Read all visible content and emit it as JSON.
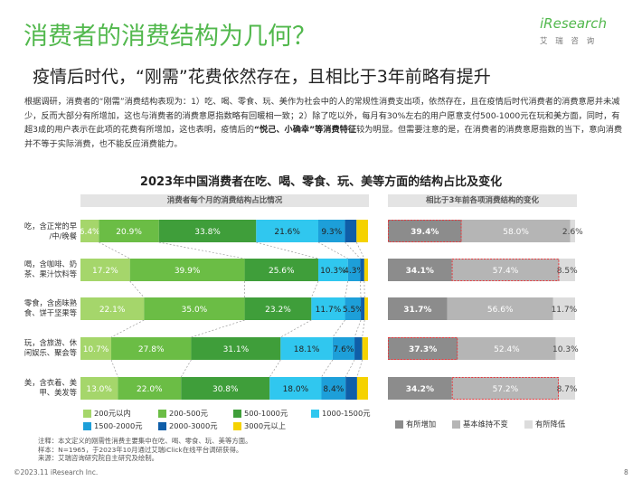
{
  "header": {
    "title": "消费者的消费结构为几何？",
    "subtitle": "疫情后时代，“刚需”花费依然存在，且相比于3年前略有提升",
    "logo_main": "iResearch",
    "logo_sub": "艾 瑞 咨 询"
  },
  "body": {
    "p1": "根据调研，消费者的“刚需”消费结构表现为：1）吃、喝、零食、玩、美作为社会中的人的常规性消费支出项，依然存在，且在疫情后时代消费者的消费意愿并未减少，反而大部分有所增加，这也与消费者的消费意愿指数略有回暖相一致；2）除了吃以外，每月有30%左右的用户愿意支付500-1000元在玩和美方面，同时，有超3成的用户表示在此项的花费有所增加，这也表明，疫情后的",
    "bold": "“悦己、小确幸”等消费特征",
    "p2": "较为明显。但需要注意的是，在消费者的消费意愿指数的当下，意向消费并不等于实际消费，也不能反应消费能力。"
  },
  "chart_data": [
    {
      "type": "bar",
      "stacked": true,
      "orientation": "horizontal",
      "title": "2023年中国消费者在吃、喝、零食、玩、美等方面的结构占比及变化",
      "panel_title": "消费者每个月的消费结构占比情况",
      "categories": [
        "吃，含正常的早/中/晚餐",
        "喝，含咖啡、奶茶、果汁饮料等",
        "零食，含卤味熟食、饼干坚果等",
        "玩，含旅游、休闲娱乐、聚会等",
        "美，含衣着、美甲、美发等"
      ],
      "series": [
        {
          "name": "200元以内",
          "color": "#a5d66b",
          "values": [
            6.4,
            17.2,
            22.1,
            10.7,
            13.0
          ],
          "labels": [
            "6.4%",
            "17.2%",
            "22.1%",
            "10.7%",
            "13.0%"
          ]
        },
        {
          "name": "200-500元",
          "color": "#6bbd45",
          "values": [
            20.9,
            39.9,
            35.0,
            27.8,
            22.0
          ],
          "labels": [
            "20.9%",
            "39.9%",
            "35.0%",
            "27.8%",
            "22.0%"
          ]
        },
        {
          "name": "500-1000元",
          "color": "#3f9e3a",
          "values": [
            33.8,
            25.6,
            23.2,
            31.1,
            30.8
          ],
          "labels": [
            "33.8%",
            "25.6%",
            "23.2%",
            "31.1%",
            "30.8%"
          ]
        },
        {
          "name": "1000-1500元",
          "color": "#30c7ef",
          "values": [
            21.6,
            10.3,
            11.7,
            18.1,
            18.0
          ],
          "labels": [
            "21.6%",
            "10.3%",
            "11.7%",
            "18.1%",
            "18.0%"
          ]
        },
        {
          "name": "1500-2000元",
          "color": "#1d9fd9",
          "values": [
            9.3,
            4.3,
            5.5,
            7.6,
            8.4
          ],
          "labels": [
            "9.3%",
            "4.3%",
            "5.5%",
            "7.6%",
            "8.4%"
          ]
        },
        {
          "name": "2000-3000元",
          "color": "#0f5ea8",
          "values": [
            4.0,
            1.4,
            1.3,
            2.7,
            4.0
          ],
          "labels": [
            "",
            "",
            "",
            "",
            ""
          ]
        },
        {
          "name": "3000元以上",
          "color": "#f5d200",
          "values": [
            4.0,
            1.3,
            1.2,
            2.0,
            3.8
          ],
          "labels": [
            "",
            "",
            "",
            "",
            ""
          ]
        }
      ]
    },
    {
      "type": "bar",
      "stacked": true,
      "orientation": "horizontal",
      "panel_title": "相比于3年前各项消费结构的变化",
      "categories": [
        "吃，含正常的早/中/晚餐",
        "喝，含咖啡、奶茶、果汁饮料等",
        "零食，含卤味熟食、饼干坚果等",
        "玩，含旅游、休闲娱乐、聚会等",
        "美，含衣着、美甲、美发等"
      ],
      "series": [
        {
          "name": "有所增加",
          "color": "#8c8c8c",
          "values": [
            39.4,
            34.1,
            31.7,
            37.3,
            34.2
          ],
          "labels": [
            "39.4%",
            "34.1%",
            "31.7%",
            "37.3%",
            "34.2%"
          ]
        },
        {
          "name": "基本维持不变",
          "color": "#b5b5b5",
          "values": [
            58.0,
            57.4,
            56.6,
            52.4,
            57.2
          ],
          "labels": [
            "58.0%",
            "57.4%",
            "56.6%",
            "52.4%",
            "57.2%"
          ]
        },
        {
          "name": "有所降低",
          "color": "#dcdcdc",
          "values": [
            2.6,
            8.5,
            11.7,
            10.3,
            8.7
          ],
          "labels": [
            "2.6%",
            "8.5%",
            "11.7%",
            "10.3%",
            "8.7%"
          ]
        }
      ],
      "highlighted": [
        {
          "category": "吃，含正常的早/中/晚餐",
          "series": "有所增加"
        },
        {
          "category": "喝，含咖啡、奶茶、果汁饮料等",
          "series": "基本维持不变"
        },
        {
          "category": "玩，含旅游、休闲娱乐、聚会等",
          "series": "有所增加"
        },
        {
          "category": "美，含衣着、美甲、美发等",
          "series": "基本维持不变"
        }
      ]
    }
  ],
  "cat_labels": [
    [
      "吃，含正常的早",
      "/中/晚餐"
    ],
    [
      "喝，含咖啡、奶",
      "茶、果汁饮料等"
    ],
    [
      "零食，含卤味熟",
      "食、饼干坚果等"
    ],
    [
      "玩，含旅游、休",
      "闲娱乐、聚会等"
    ],
    [
      "美，含衣着、美",
      "甲、美发等"
    ]
  ],
  "notes": {
    "line1": "注释：本文定义的刚需性消费主要集中在吃、喝、零食、玩、美等方面。",
    "line2": "样本：N=1965，于2023年10月通过艾瑞iClick在线平台调研获得。",
    "line3": "来源：艾瑞咨询研究院自主研究及绘制。"
  },
  "footer": {
    "copyright": "©2023.11 iResearch Inc.",
    "page": "8"
  }
}
